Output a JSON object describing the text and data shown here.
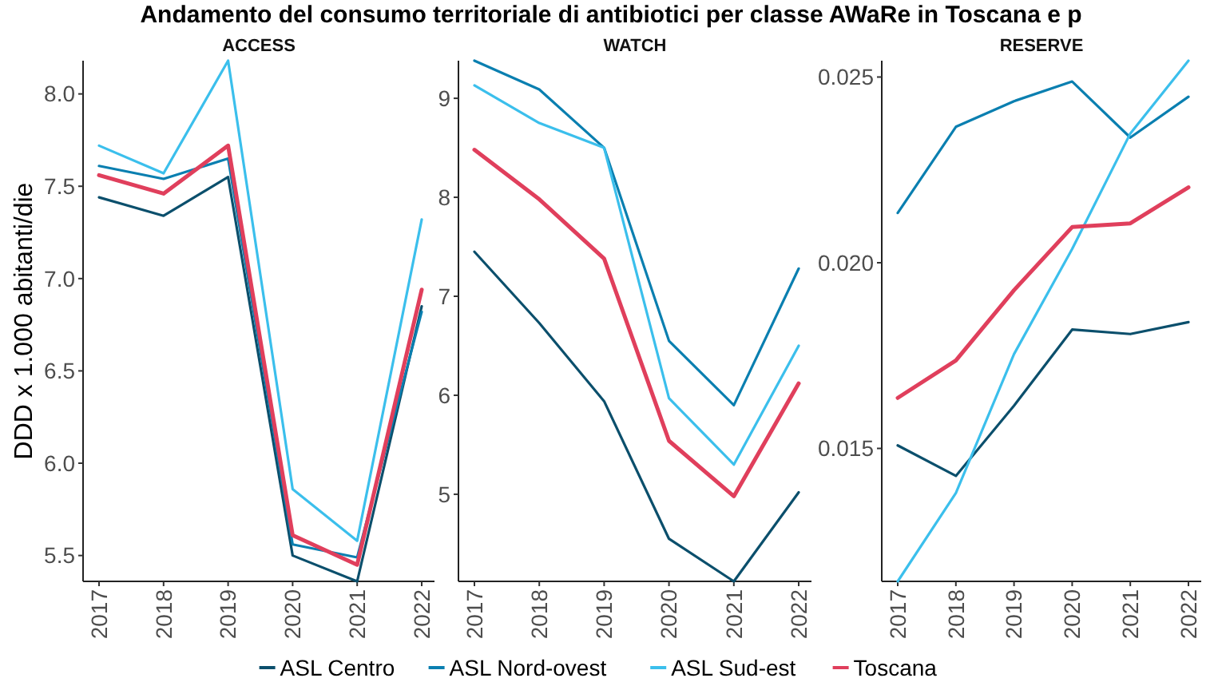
{
  "chart_data": [
    {
      "type": "line",
      "title": "Andamento del consumo territoriale di antibiotici per classe AWaRe in Toscana e p",
      "subtitle": "ACCESS",
      "ylabel": "DDD x 1.000 abitanti/die",
      "categories": [
        "2017",
        "2018",
        "2019",
        "2020",
        "2021",
        "2022"
      ],
      "ylim": [
        5.36,
        8.18
      ],
      "yticks": [
        {
          "value": 5.5,
          "label": "5.5"
        },
        {
          "value": 6,
          "label": "6.0"
        },
        {
          "value": 6.5,
          "label": "6.5"
        },
        {
          "value": 7,
          "label": "7.0"
        },
        {
          "value": 7.5,
          "label": "7.5"
        },
        {
          "value": 8,
          "label": "8.0"
        }
      ],
      "grid": false,
      "legend": "bottom",
      "series": [
        {
          "name": "ASL Centro",
          "color": "#0b4f6c",
          "values": [
            7.44,
            7.34,
            7.55,
            5.5,
            5.36,
            6.85
          ]
        },
        {
          "name": "ASL Nord-ovest",
          "color": "#0a7fb0",
          "values": [
            7.61,
            7.54,
            7.65,
            5.56,
            5.49,
            6.82
          ]
        },
        {
          "name": "ASL Sud-est",
          "color": "#3bbfec",
          "values": [
            7.72,
            7.57,
            8.18,
            5.86,
            5.58,
            7.32
          ]
        },
        {
          "name": "Toscana",
          "color": "#e03f5c",
          "values": [
            7.56,
            7.46,
            7.72,
            5.61,
            5.45,
            6.94
          ]
        }
      ]
    },
    {
      "type": "line",
      "subtitle": "WATCH",
      "categories": [
        "2017",
        "2018",
        "2019",
        "2020",
        "2021",
        "2022"
      ],
      "ylim": [
        4.12,
        9.38
      ],
      "yticks": [
        5,
        6,
        7,
        8,
        9
      ],
      "grid": false,
      "series": [
        {
          "color": "#0b4f6c",
          "values": [
            7.45,
            6.73,
            5.94,
            4.55,
            4.12,
            5.02
          ]
        },
        {
          "color": "#0a7fb0",
          "values": [
            9.38,
            9.09,
            8.5,
            6.55,
            5.9,
            7.28
          ]
        },
        {
          "color": "#3bbfec",
          "values": [
            9.13,
            8.75,
            8.5,
            5.97,
            5.3,
            6.5
          ]
        },
        {
          "color": "#e03f5c",
          "values": [
            8.48,
            7.98,
            7.38,
            5.54,
            4.98,
            6.12
          ]
        }
      ]
    },
    {
      "type": "line",
      "subtitle": "RESERVE",
      "categories": [
        "2017",
        "2018",
        "2019",
        "2020",
        "2021",
        "2022"
      ],
      "ylim": [
        0.01142,
        0.02544
      ],
      "yticks": [
        {
          "value": 0.015,
          "label": "0.015"
        },
        {
          "value": 0.02,
          "label": "0.020"
        },
        {
          "value": 0.025,
          "label": "0.025"
        }
      ],
      "grid": false,
      "series": [
        {
          "color": "#0b4f6c",
          "values": [
            0.01508,
            0.01426,
            0.01615,
            0.0182,
            0.01808,
            0.0184
          ]
        },
        {
          "color": "#0a7fb0",
          "values": [
            0.02134,
            0.02366,
            0.02435,
            0.02488,
            0.02337,
            0.02447
          ]
        },
        {
          "color": "#3bbfec",
          "values": [
            0.01142,
            0.0138,
            0.01754,
            0.02037,
            0.02348,
            0.02544
          ]
        },
        {
          "color": "#e03f5c",
          "values": [
            0.01636,
            0.01737,
            0.01926,
            0.02096,
            0.02106,
            0.02203
          ]
        }
      ]
    }
  ]
}
